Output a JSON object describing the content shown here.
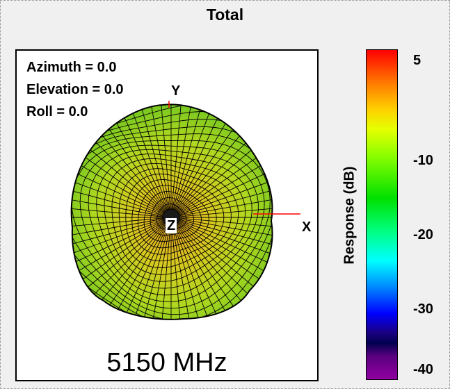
{
  "title": "Total",
  "orientation": {
    "azimuth": "Azimuth = 0.0",
    "elevation": "Elevation = 0.0",
    "roll": "Roll = 0.0"
  },
  "axes": {
    "x": "X",
    "y": "Y",
    "z": "Z"
  },
  "frequency": "5150 MHz",
  "colorbar": {
    "label": "Response  (dB)",
    "ticks": [
      "5",
      "-10",
      "-20",
      "-30",
      "-40"
    ]
  },
  "colors": {
    "mesh_line": "#000000",
    "surface_center": "#e0c020",
    "surface_edge": "#80d020",
    "axis_red": "#ff0000"
  }
}
